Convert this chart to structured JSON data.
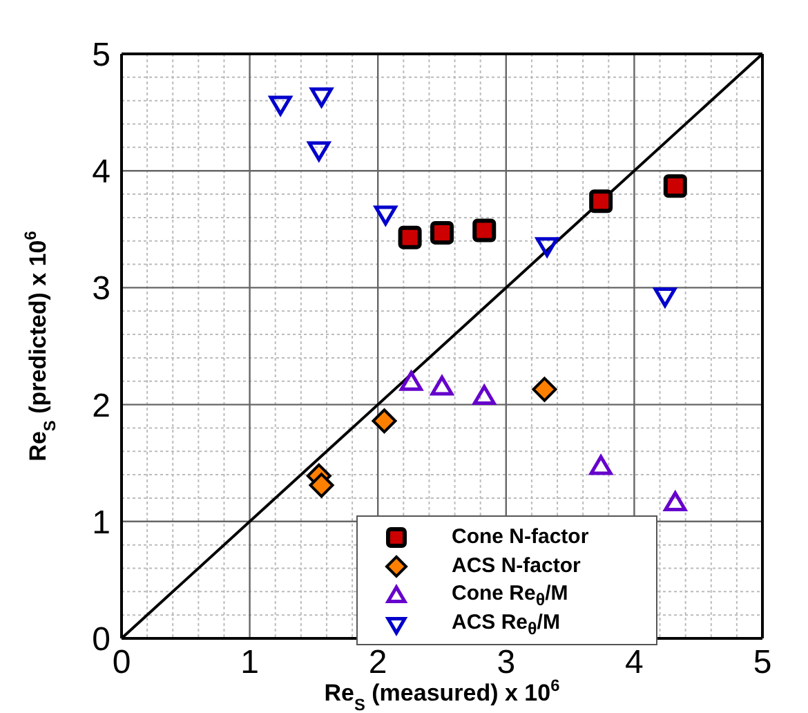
{
  "chart_data": {
    "type": "scatter",
    "xlabel": "Re$_{S}$ (measured) x 10$^{6}$",
    "ylabel": "Re$_{S}$ (predicted) x 10$^{6}$",
    "xlim": [
      0,
      5
    ],
    "ylim": [
      0,
      5
    ],
    "xticks": [
      0,
      {
        "value": 0.2,
        "label": null
      },
      {
        "value": 0.4,
        "label": null
      },
      {
        "value": 0.6,
        "label": null
      },
      {
        "value": 0.8,
        "label": null
      },
      1,
      {
        "value": 1.2,
        "label": null
      },
      {
        "value": 1.4,
        "label": null
      },
      {
        "value": 1.6,
        "label": null
      },
      {
        "value": 1.8,
        "label": null
      },
      2,
      {
        "value": 2.2,
        "label": null
      },
      {
        "value": 2.4,
        "label": null
      },
      {
        "value": 2.6,
        "label": null
      },
      {
        "value": 2.8,
        "label": null
      },
      3,
      {
        "value": 3.2,
        "label": null
      },
      {
        "value": 3.4,
        "label": null
      },
      {
        "value": 3.6,
        "label": null
      },
      {
        "value": 3.8,
        "label": null
      },
      4,
      {
        "value": 4.2,
        "label": null
      },
      {
        "value": 4.4,
        "label": null
      },
      {
        "value": 4.6,
        "label": null
      },
      {
        "value": 4.8,
        "label": null
      },
      5
    ],
    "yticks": [
      0,
      {
        "value": 0.2,
        "label": null
      },
      {
        "value": 0.4,
        "label": null
      },
      {
        "value": 0.6,
        "label": null
      },
      {
        "value": 0.8,
        "label": null
      },
      1,
      {
        "value": 1.2,
        "label": null
      },
      {
        "value": 1.4,
        "label": null
      },
      {
        "value": 1.6,
        "label": null
      },
      {
        "value": 1.8,
        "label": null
      },
      2,
      {
        "value": 2.2,
        "label": null
      },
      {
        "value": 2.4,
        "label": null
      },
      {
        "value": 2.6,
        "label": null
      },
      {
        "value": 2.8,
        "label": null
      },
      3,
      {
        "value": 3.2,
        "label": null
      },
      {
        "value": 3.4,
        "label": null
      },
      {
        "value": 3.6,
        "label": null
      },
      {
        "value": 3.8,
        "label": null
      },
      4,
      {
        "value": 4.2,
        "label": null
      },
      {
        "value": 4.4,
        "label": null
      },
      {
        "value": 4.6,
        "label": null
      },
      {
        "value": 4.8,
        "label": null
      },
      5
    ],
    "grid": true,
    "legend": "bottom",
    "series": [
      {
        "name": "Cone N-factor",
        "color": "#cc0000",
        "marker": "square",
        "x": [
          2.25,
          2.5,
          2.83,
          3.74,
          4.32
        ],
        "values": [
          3.43,
          3.47,
          3.49,
          3.74,
          3.87
        ]
      },
      {
        "name": "ACS N-factor",
        "color": "#ff8000",
        "marker": "diamond",
        "x": [
          2.05,
          3.3,
          1.54,
          1.56
        ],
        "values": [
          1.86,
          2.13,
          1.39,
          1.31
        ]
      },
      {
        "name": "Cone Re$_{θ}$/M",
        "color": "#6600cc",
        "marker": "triangle",
        "x": [
          2.26,
          2.5,
          2.83,
          3.74,
          4.32
        ],
        "values": [
          2.19,
          2.15,
          2.07,
          1.47,
          1.16
        ]
      },
      {
        "name": "ACS Re$_{θ}$/M",
        "color": "#0000cc",
        "marker": "triangle-down",
        "x": [
          1.24,
          1.56,
          1.54,
          2.06,
          3.32,
          4.24
        ],
        "values": [
          4.57,
          4.64,
          4.18,
          3.63,
          3.36,
          2.93
        ]
      },
      {
        "type": "line",
        "color": "#000000",
        "marker": "none",
        "x": [
          0,
          5
        ],
        "values": [
          0,
          5
        ]
      }
    ]
  }
}
